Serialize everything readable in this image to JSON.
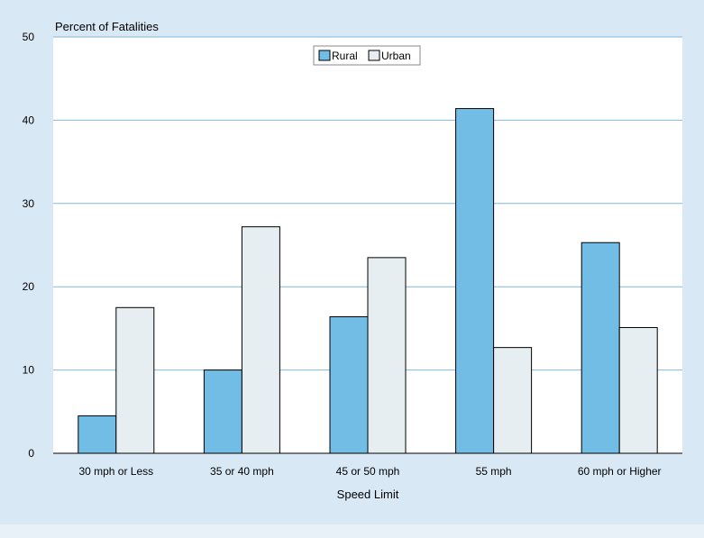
{
  "colors": {
    "background": "#d9e8f5",
    "plot_background": "#ffffff",
    "gridline": "#7fb8dd",
    "rural": "#72bde5",
    "urban": "#e6eef2",
    "outline": "#000000",
    "bottom_band": "#e8f0f8"
  },
  "chart_data": {
    "type": "bar",
    "title": "",
    "ylabel": "Percent of Fatalities",
    "xlabel": "Speed Limit",
    "ylim": [
      0,
      50
    ],
    "yticks": [
      0,
      10,
      20,
      30,
      40,
      50
    ],
    "categories": [
      "30 mph or Less",
      "35 or 40 mph",
      "45 or 50 mph",
      "55 mph",
      "60 mph or Higher"
    ],
    "series": [
      {
        "name": "Rural",
        "values": [
          4.5,
          10.0,
          16.4,
          41.4,
          25.3
        ]
      },
      {
        "name": "Urban",
        "values": [
          17.5,
          27.2,
          23.5,
          12.7,
          15.1
        ]
      }
    ],
    "grid": true,
    "legend_position": "top-center"
  }
}
